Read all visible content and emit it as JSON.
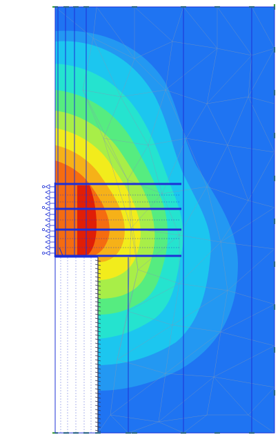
{
  "diagram": {
    "kind": "finite-element contour plot",
    "colors": {
      "background": "#ffffff",
      "contour_base": "#1f74f2",
      "contour_1": "#2398f2",
      "contour_2": "#1cc6ef",
      "contour_3": "#25e3cf",
      "contour_4": "#56ec80",
      "contour_5": "#a8ee48",
      "contour_6": "#f2ec1c",
      "contour_7": "#f6b118",
      "contour_8": "#f56c10",
      "contour_9": "#e01e06",
      "structure": "#1d2fd6",
      "mesh_line": "#7f98b8",
      "boundary_tick": "#3f9e3f",
      "wall_hatch": "#333355"
    },
    "contour_levels": 10,
    "anchor_rows": 4
  }
}
